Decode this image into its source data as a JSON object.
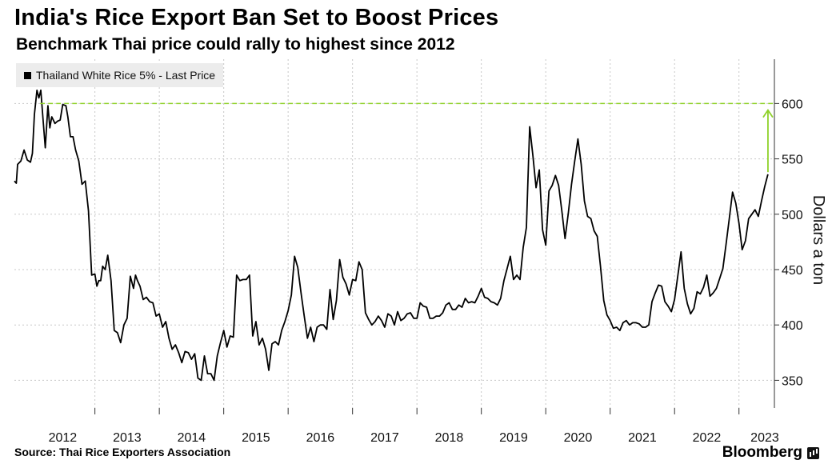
{
  "header": {
    "title": "India's Rice Export Ban Set to Boost Prices",
    "subtitle": "Benchmark Thai price could rally to highest since 2012"
  },
  "legend": {
    "label": "Thailand White Rice 5% - Last Price"
  },
  "footer": {
    "source": "Source: Thai Rice Exporters Association",
    "brand": "Bloomberg"
  },
  "colors": {
    "line": "#000000",
    "target": "#8fd12a",
    "grid": "#c8c8c8"
  },
  "chart_data": {
    "type": "line",
    "title": "India's Rice Export Ban Set to Boost Prices",
    "subtitle": "Benchmark Thai price could rally to highest since 2012",
    "ylabel": "Dollars a ton",
    "xlabel": "",
    "y_axis_side": "right",
    "ylim": [
      325,
      640
    ],
    "yticks": [
      350,
      400,
      450,
      500,
      550,
      600
    ],
    "xlim": [
      2011.75,
      2023.55
    ],
    "xticks": [
      "2012",
      "2013",
      "2014",
      "2015",
      "2016",
      "2017",
      "2018",
      "2019",
      "2020",
      "2021",
      "2022",
      "2023"
    ],
    "grid": true,
    "legend_position": "top-left",
    "reference_line": {
      "y": 600,
      "style": "dashed",
      "color": "#8fd12a"
    },
    "arrow": {
      "x": 2023.45,
      "from": 538,
      "to": 594,
      "color": "#8fd12a"
    },
    "series": [
      {
        "name": "Thailand White Rice 5% - Last Price",
        "x": [
          2011.75,
          2011.78,
          2011.8,
          2011.85,
          2011.9,
          2011.95,
          2012.0,
          2012.03,
          2012.06,
          2012.1,
          2012.13,
          2012.16,
          2012.2,
          2012.23,
          2012.27,
          2012.3,
          2012.33,
          2012.38,
          2012.42,
          2012.46,
          2012.5,
          2012.55,
          2012.58,
          2012.62,
          2012.66,
          2012.7,
          2012.75,
          2012.8,
          2012.85,
          2012.9,
          2012.95,
          2013.0,
          2013.03,
          2013.06,
          2013.09,
          2013.12,
          2013.16,
          2013.2,
          2013.25,
          2013.3,
          2013.35,
          2013.4,
          2013.45,
          2013.5,
          2013.55,
          2013.6,
          2013.63,
          2013.66,
          2013.7,
          2013.75,
          2013.8,
          2013.85,
          2013.9,
          2013.95,
          2014.0,
          2014.05,
          2014.1,
          2014.15,
          2014.2,
          2014.25,
          2014.3,
          2014.35,
          2014.4,
          2014.45,
          2014.5,
          2014.55,
          2014.6,
          2014.65,
          2014.7,
          2014.75,
          2014.8,
          2014.85,
          2014.9,
          2014.95,
          2015.0,
          2015.05,
          2015.1,
          2015.15,
          2015.2,
          2015.25,
          2015.3,
          2015.35,
          2015.4,
          2015.45,
          2015.5,
          2015.55,
          2015.6,
          2015.65,
          2015.7,
          2015.75,
          2015.8,
          2015.85,
          2015.9,
          2015.95,
          2016.0,
          2016.05,
          2016.1,
          2016.15,
          2016.2,
          2016.25,
          2016.3,
          2016.35,
          2016.4,
          2016.45,
          2016.5,
          2016.55,
          2016.6,
          2016.65,
          2016.7,
          2016.75,
          2016.8,
          2016.85,
          2016.9,
          2016.95,
          2017.0,
          2017.05,
          2017.1,
          2017.15,
          2017.2,
          2017.25,
          2017.3,
          2017.35,
          2017.4,
          2017.45,
          2017.5,
          2017.55,
          2017.6,
          2017.65,
          2017.7,
          2017.75,
          2017.8,
          2017.85,
          2017.9,
          2017.95,
          2018.0,
          2018.05,
          2018.1,
          2018.15,
          2018.2,
          2018.25,
          2018.3,
          2018.35,
          2018.4,
          2018.45,
          2018.5,
          2018.55,
          2018.6,
          2018.65,
          2018.7,
          2018.75,
          2018.8,
          2018.85,
          2018.9,
          2018.95,
          2019.0,
          2019.05,
          2019.1,
          2019.15,
          2019.2,
          2019.25,
          2019.3,
          2019.35,
          2019.4,
          2019.45,
          2019.5,
          2019.55,
          2019.6,
          2019.65,
          2019.7,
          2019.75,
          2019.8,
          2019.85,
          2019.9,
          2019.95,
          2020.0,
          2020.05,
          2020.1,
          2020.15,
          2020.2,
          2020.25,
          2020.3,
          2020.35,
          2020.4,
          2020.45,
          2020.5,
          2020.55,
          2020.6,
          2020.65,
          2020.7,
          2020.75,
          2020.8,
          2020.85,
          2020.9,
          2020.95,
          2021.0,
          2021.05,
          2021.1,
          2021.15,
          2021.2,
          2021.25,
          2021.3,
          2021.35,
          2021.4,
          2021.45,
          2021.5,
          2021.55,
          2021.6,
          2021.65,
          2021.7,
          2021.75,
          2021.8,
          2021.85,
          2021.9,
          2021.95,
          2022.0,
          2022.05,
          2022.1,
          2022.15,
          2022.2,
          2022.25,
          2022.3,
          2022.35,
          2022.4,
          2022.45,
          2022.5,
          2022.55,
          2022.6,
          2022.65,
          2022.7,
          2022.75,
          2022.8,
          2022.85,
          2022.9,
          2022.95,
          2023.0,
          2023.05,
          2023.1,
          2023.15,
          2023.2,
          2023.25,
          2023.3,
          2023.35,
          2023.4,
          2023.45
        ],
        "values": [
          530,
          528,
          545,
          548,
          558,
          549,
          547,
          555,
          590,
          612,
          605,
          612,
          582,
          560,
          598,
          578,
          588,
          582,
          584,
          585,
          599,
          598,
          588,
          570,
          570,
          558,
          548,
          527,
          530,
          503,
          445,
          446,
          435,
          440,
          440,
          453,
          450,
          463,
          440,
          395,
          393,
          384,
          400,
          406,
          444,
          433,
          445,
          440,
          435,
          423,
          425,
          421,
          420,
          408,
          410,
          398,
          403,
          388,
          378,
          382,
          375,
          366,
          376,
          375,
          369,
          374,
          352,
          350,
          372,
          356,
          356,
          350,
          372,
          384,
          395,
          380,
          390,
          389,
          445,
          440,
          441,
          441,
          445,
          390,
          403,
          382,
          388,
          378,
          359,
          383,
          385,
          382,
          395,
          403,
          413,
          427,
          462,
          452,
          429,
          408,
          388,
          398,
          385,
          398,
          400,
          400,
          396,
          432,
          405,
          422,
          459,
          443,
          437,
          427,
          441,
          440,
          457,
          450,
          411,
          405,
          400,
          403,
          408,
          404,
          398,
          410,
          408,
          400,
          412,
          404,
          406,
          410,
          411,
          406,
          406,
          420,
          417,
          416,
          406,
          406,
          408,
          408,
          411,
          418,
          420,
          414,
          414,
          418,
          416,
          424,
          420,
          421,
          420,
          426,
          433,
          425,
          424,
          421,
          420,
          418,
          424,
          440,
          451,
          462,
          441,
          445,
          441,
          470,
          488,
          579,
          553,
          524,
          540,
          486,
          472,
          521,
          526,
          535,
          526,
          503,
          478,
          501,
          527,
          548,
          568,
          545,
          512,
          498,
          496,
          485,
          480,
          453,
          422,
          409,
          404,
          397,
          398,
          395,
          402,
          404,
          400,
          402,
          402,
          401,
          398,
          398,
          400,
          421,
          429,
          436,
          435,
          421,
          417,
          412,
          423,
          444,
          466,
          433,
          419,
          410,
          415,
          430,
          428,
          434,
          445,
          426,
          429,
          433,
          442,
          451,
          473,
          496,
          520,
          510,
          492,
          468,
          476,
          496,
          500,
          504,
          498,
          512,
          525,
          536
        ]
      }
    ]
  }
}
